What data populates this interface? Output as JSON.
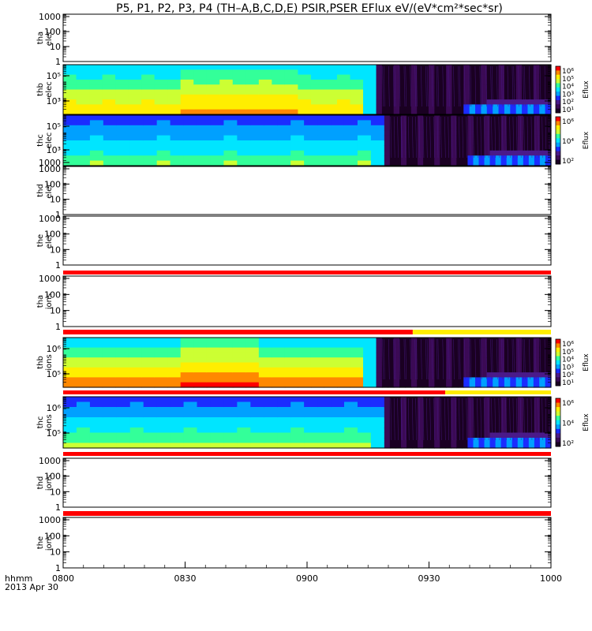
{
  "title": "P5, P1, P2, P3, P4 (TH–A,B,C,D,E) PSIR,PSER EFlux eV/(eV*cm²*sec*sr)",
  "chart_data": {
    "type": "heatmap",
    "title": "P5, P1, P2, P3, P4 (TH–A,B,C,D,E) PSIR,PSER EFlux eV/(eV*cm²*sec*sr)",
    "x_axis": {
      "unit_label": "hhmm",
      "date_label": "2013 Apr 30",
      "ticks": [
        "0800",
        "0830",
        "0900",
        "0930",
        "1000"
      ],
      "range": [
        "08:00",
        "10:00"
      ]
    },
    "colors": {
      "scale": [
        "#1a0022",
        "#3b0a55",
        "#4a1a8a",
        "#1b2cff",
        "#00a0ff",
        "#00e5ff",
        "#33ff99",
        "#ccff33",
        "#ffee00",
        "#ff8800",
        "#ff0000"
      ],
      "mode_bar_red": "#ff0000",
      "mode_bar_yellow": "#ffee00"
    },
    "panels": [
      {
        "probe": "tha",
        "species": "elec",
        "has_data": false,
        "y_scale": "log",
        "yticks": [
          "1000",
          "100",
          "10",
          "1"
        ]
      },
      {
        "probe": "thb",
        "species": "elec",
        "has_data": true,
        "y_scale": "log",
        "yticks": [
          "10⁵",
          "10³"
        ],
        "colorbar": {
          "label": "Eflux",
          "ticks": [
            "10⁶",
            "10⁵",
            "10⁴",
            "10³",
            "10²",
            "10¹"
          ]
        },
        "data_gap_start": "09:17"
      },
      {
        "probe": "thc",
        "species": "elec",
        "has_data": true,
        "y_scale": "log",
        "yticks": [
          "10⁵",
          "10³",
          "1000"
        ],
        "colorbar": {
          "label": "Eflux",
          "ticks": [
            "10⁶",
            "10⁴",
            "10²"
          ]
        },
        "data_gap_start": "09:19"
      },
      {
        "probe": "thd",
        "species": "elec",
        "has_data": false,
        "y_scale": "log",
        "yticks": [
          "1000",
          "100",
          "10",
          "1"
        ]
      },
      {
        "probe": "the",
        "species": "elec",
        "has_data": false,
        "y_scale": "log",
        "yticks": [
          "1000",
          "100",
          "10",
          "1"
        ]
      },
      {
        "probe": "tha",
        "species": "ions",
        "has_data": false,
        "y_scale": "log",
        "yticks": [
          "1000",
          "100",
          "10",
          "1"
        ]
      },
      {
        "probe": "thb",
        "species": "ions",
        "has_data": true,
        "y_scale": "log",
        "yticks": [
          "10⁶",
          "10⁵"
        ],
        "colorbar": {
          "label": "Eflux",
          "ticks": [
            "10⁶",
            "10⁵",
            "10⁴",
            "10³",
            "10²",
            "10¹"
          ]
        },
        "data_gap_start": "09:17"
      },
      {
        "probe": "thc",
        "species": "ions",
        "has_data": true,
        "y_scale": "log",
        "yticks": [
          "10⁶",
          "10⁵"
        ],
        "colorbar": {
          "label": "Eflux",
          "ticks": [
            "10⁶",
            "10⁴",
            "10²"
          ]
        },
        "data_gap_start": "09:19"
      },
      {
        "probe": "thd",
        "species": "ions",
        "has_data": false,
        "y_scale": "log",
        "yticks": [
          "1000",
          "100",
          "10",
          "1"
        ]
      },
      {
        "probe": "the",
        "species": "ions",
        "has_data": false,
        "y_scale": "log",
        "yticks": [
          "1000",
          "100",
          "10",
          "1"
        ]
      }
    ],
    "mode_bars": [
      {
        "between": "the elec / tha ions",
        "segments": [
          {
            "color": "red",
            "start": "08:00",
            "end": "10:00"
          }
        ]
      },
      {
        "between": "tha ions / thb ions",
        "segments": [
          {
            "color": "red",
            "start": "08:00",
            "end": "09:26"
          },
          {
            "color": "yellow",
            "start": "09:26",
            "end": "10:00"
          }
        ]
      },
      {
        "between": "thb ions / thc ions",
        "segments": [
          {
            "color": "red",
            "start": "08:00",
            "end": "09:34"
          },
          {
            "color": "yellow",
            "start": "09:34",
            "end": "10:00"
          }
        ]
      },
      {
        "between": "thc ions / thd ions",
        "segments": [
          {
            "color": "red",
            "start": "08:00",
            "end": "10:00"
          }
        ]
      },
      {
        "between": "thd ions / the ions",
        "segments": [
          {
            "color": "red",
            "start": "08:00",
            "end": "10:00"
          }
        ]
      }
    ]
  }
}
